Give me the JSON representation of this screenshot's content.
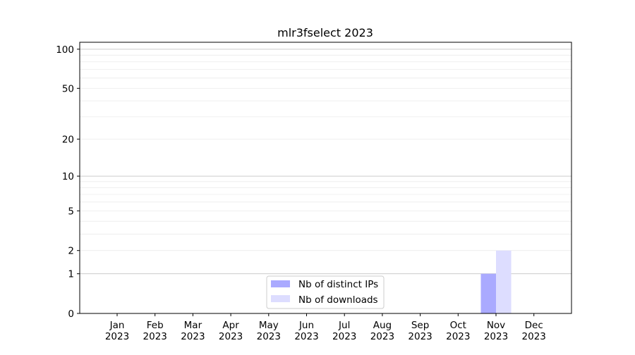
{
  "chart_data": {
    "type": "bar",
    "title": "mlr3fselect 2023",
    "xlabel": "",
    "ylabel": "",
    "yscale": "log(1+y)",
    "ylim": [
      0,
      113
    ],
    "yticks": [
      0,
      1,
      2,
      5,
      10,
      20,
      50,
      100
    ],
    "grid": true,
    "legend_position": "lower-center",
    "categories": [
      "Jan\n2023",
      "Feb\n2023",
      "Mar\n2023",
      "Apr\n2023",
      "May\n2023",
      "Jun\n2023",
      "Jul\n2023",
      "Aug\n2023",
      "Sep\n2023",
      "Oct\n2023",
      "Nov\n2023",
      "Dec\n2023"
    ],
    "series": [
      {
        "name": "Nb of distinct IPs",
        "color": "#aaaaff",
        "values": [
          0,
          0,
          0,
          0,
          0,
          0,
          0,
          0,
          0,
          0,
          1,
          0
        ]
      },
      {
        "name": "Nb of downloads",
        "color": "#ddddff",
        "values": [
          0,
          0,
          0,
          0,
          0,
          0,
          0,
          0,
          0,
          0,
          2,
          0
        ]
      }
    ]
  }
}
